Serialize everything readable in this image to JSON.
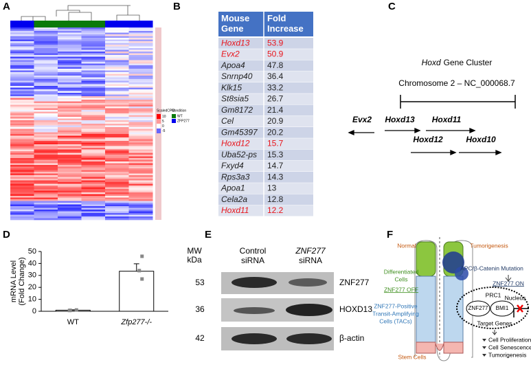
{
  "panel_labels": [
    "A",
    "B",
    "C",
    "D",
    "E",
    "F"
  ],
  "heatmap": {
    "legend_title": "ScaledCPM",
    "legend_ticks": [
      10,
      5,
      0,
      -5
    ],
    "condition_title": "Condition",
    "conditions": [
      {
        "name": "WT",
        "color": "#0a7a0a"
      },
      {
        "name": "ZFP277",
        "color": "#0000ee"
      }
    ]
  },
  "table": {
    "header": [
      "Mouse Gene",
      "Fold Increase"
    ],
    "rows": [
      {
        "gene": "Hoxd13",
        "fold": 53.9,
        "highlight": true
      },
      {
        "gene": "Evx2",
        "fold": 50.9,
        "highlight": true
      },
      {
        "gene": "Apoa4",
        "fold": 47.8,
        "highlight": false
      },
      {
        "gene": "Snrnp40",
        "fold": 36.4,
        "highlight": false
      },
      {
        "gene": "Klk15",
        "fold": 33.2,
        "highlight": false
      },
      {
        "gene": "St8sia5",
        "fold": 26.7,
        "highlight": false
      },
      {
        "gene": "Gm8172",
        "fold": 21.4,
        "highlight": false
      },
      {
        "gene": "Cel",
        "fold": 20.9,
        "highlight": false
      },
      {
        "gene": "Gm45397",
        "fold": 20.2,
        "highlight": false
      },
      {
        "gene": "Hoxd12",
        "fold": 15.7,
        "highlight": true
      },
      {
        "gene": "Uba52-ps",
        "fold": 15.3,
        "highlight": false
      },
      {
        "gene": "Fxyd4",
        "fold": 14.7,
        "highlight": false
      },
      {
        "gene": "Rps3a3",
        "fold": 14.3,
        "highlight": false
      },
      {
        "gene": "Apoa1",
        "fold": 13,
        "highlight": false
      },
      {
        "gene": "Cela2a",
        "fold": 12.8,
        "highlight": false
      },
      {
        "gene": "Hoxd11",
        "fold": 12.2,
        "highlight": true
      }
    ]
  },
  "gene_cluster": {
    "title_italic": "Hoxd",
    "title": "Gene Cluster",
    "chromosome": "Chromosome 2 – NC_000068.7",
    "genes": [
      "Evx2",
      "Hoxd13",
      "Hoxd11",
      "Hoxd12",
      "Hoxd10"
    ]
  },
  "chart_data": {
    "type": "bar",
    "ylabel": [
      "mRNA Level",
      "(Fold Change)"
    ],
    "categories": [
      "WT",
      "Zfp277-/-"
    ],
    "values": [
      0.9,
      33.5
    ],
    "errors": [
      0.3,
      6.2
    ],
    "points": [
      [
        1.1,
        0.8,
        0.7
      ],
      [
        46,
        34,
        27
      ]
    ],
    "ylim": [
      0,
      50
    ],
    "yticks": [
      0,
      10,
      20,
      30,
      40,
      50
    ],
    "color": "#ffffff"
  },
  "western_blot": {
    "mw_label": [
      "MW",
      "kDa"
    ],
    "lanes": [
      [
        "Control",
        "siRNA"
      ],
      [
        "ZNF277",
        "siRNA"
      ]
    ],
    "rows": [
      {
        "mw": 53,
        "protein": "ZNF277"
      },
      {
        "mw": 36,
        "protein": "HOXD13"
      },
      {
        "mw": 42,
        "protein": "β-actin"
      }
    ]
  },
  "model": {
    "normal": "Normal",
    "tumorigenesis": "Tumorigenesis",
    "differentiated": [
      "Differentiated",
      "Cells"
    ],
    "off": "ZNF277 OFF",
    "tacs": [
      "ZNF277-Positive",
      "Transit-Amplifying",
      "Cells (TACs)"
    ],
    "stem": "Stem Cells",
    "mutation": "APC/β-Catenin Mutation",
    "on": "ZNF277 ON",
    "prc1": "PRC1",
    "nucleus": "Nucleus",
    "znf": "ZNF277",
    "bmi": "BMI1",
    "targets": "Target Genes",
    "outcomes": [
      "Cell Proliferation",
      "Cell Senescence",
      "Tumorigenesis"
    ]
  }
}
